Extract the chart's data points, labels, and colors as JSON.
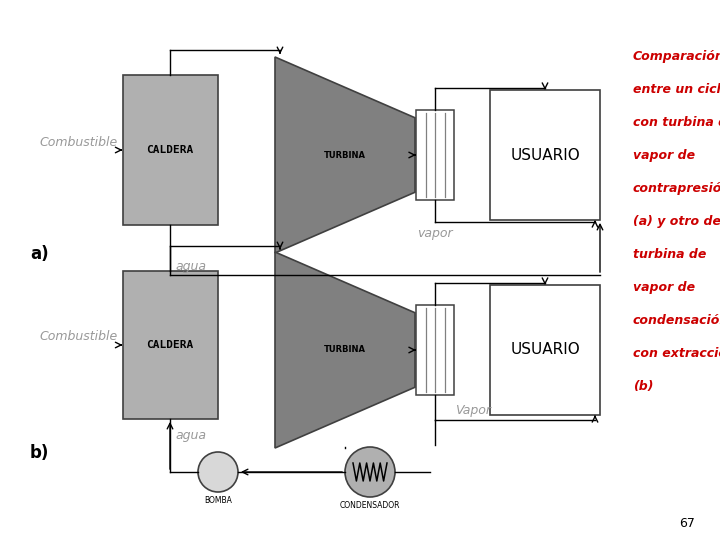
{
  "background_color": "#ffffff",
  "caption_lines": [
    "Comparación",
    "entre un ciclo",
    "con turbina de",
    "vapor de",
    "contrapresión",
    "(a) y otro de",
    "turbina de",
    "vapor de",
    "condensación",
    "con extracción",
    "(b)"
  ],
  "page_number": "67",
  "light_gray": "#b0b0b0",
  "dark_gray": "#808080",
  "box_edge": "#404040"
}
